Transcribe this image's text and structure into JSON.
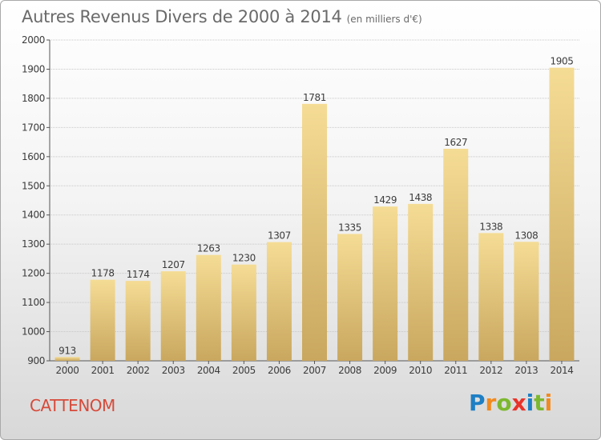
{
  "page": {
    "title": "Autres Revenus Divers de 2000 à 2014",
    "subtitle": "(en milliers d'€)",
    "place": "CATTENOM",
    "brand": "Proxiti"
  },
  "colors": {
    "bar_top": "#f5dc95",
    "bar_bottom": "#c9a75e",
    "title": "#6a6a6a",
    "place": "#d64a3a",
    "grid": "#c8c8c8",
    "brand_letters": [
      "#1e7fc4",
      "#f28a1e",
      "#7cb82f",
      "#e8332a",
      "#1e7fc4",
      "#7cb82f",
      "#f28a1e"
    ]
  },
  "chart_data": {
    "type": "bar",
    "title": "Autres Revenus Divers de 2000 à 2014",
    "subtitle": "(en milliers d'€)",
    "categories": [
      "2000",
      "2001",
      "2002",
      "2003",
      "2004",
      "2005",
      "2006",
      "2007",
      "2008",
      "2009",
      "2010",
      "2011",
      "2012",
      "2013",
      "2014"
    ],
    "values": [
      913,
      1178,
      1174,
      1207,
      1263,
      1230,
      1307,
      1781,
      1335,
      1429,
      1438,
      1627,
      1338,
      1308,
      1905
    ],
    "ylim": [
      900,
      2000
    ],
    "yticks": [
      900,
      1000,
      1100,
      1200,
      1300,
      1400,
      1500,
      1600,
      1700,
      1800,
      1900,
      2000
    ],
    "grid": true,
    "data_labels": true
  }
}
